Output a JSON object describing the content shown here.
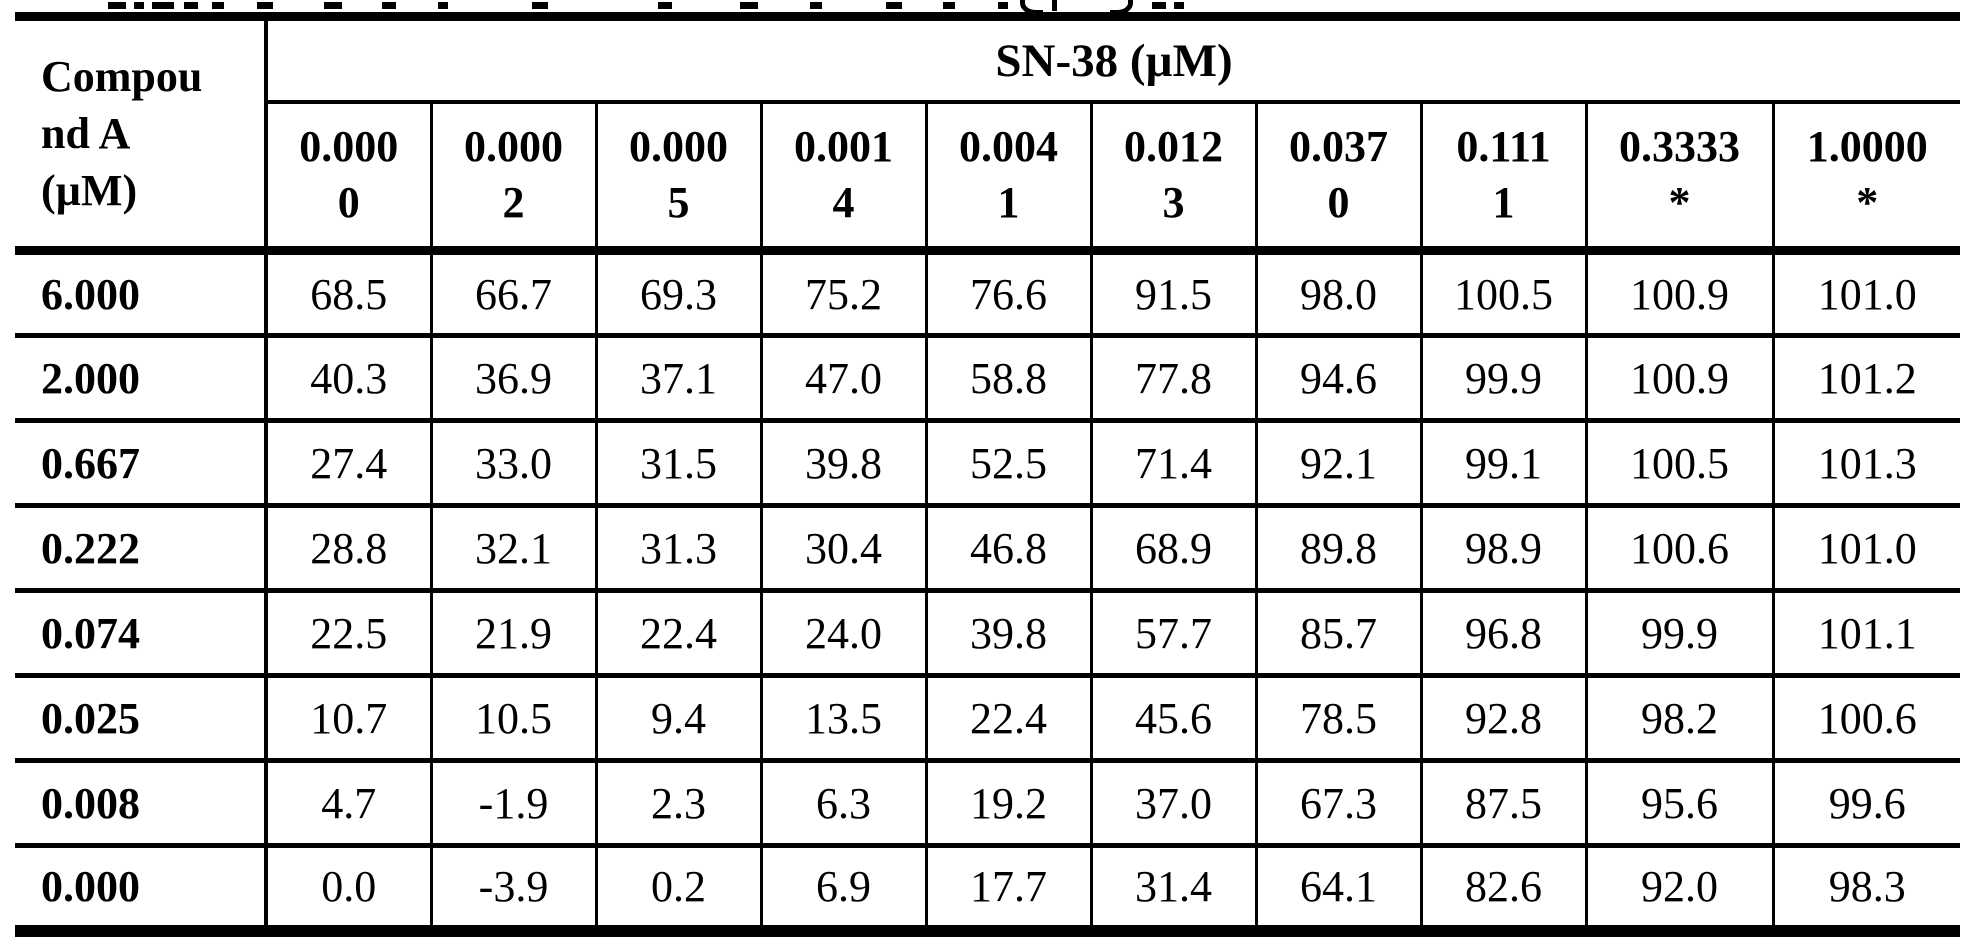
{
  "colors": {
    "text": "#000000",
    "background": "#ffffff",
    "border": "#000000"
  },
  "chart_data": {
    "type": "table",
    "corner_header": "Compound A (µM)",
    "corner_header_lines": [
      "Compou",
      "nd A",
      "(µM)"
    ],
    "span_header": "SN-38 (µM)",
    "col_headers": [
      "0.0000",
      "0.0002",
      "0.0005",
      "0.0014",
      "0.0041",
      "0.0123",
      "0.0370",
      "0.1111",
      "0.3333*",
      "1.0000*"
    ],
    "col_header_lines": [
      [
        "0.000",
        "0"
      ],
      [
        "0.000",
        "2"
      ],
      [
        "0.000",
        "5"
      ],
      [
        "0.001",
        "4"
      ],
      [
        "0.004",
        "1"
      ],
      [
        "0.012",
        "3"
      ],
      [
        "0.037",
        "0"
      ],
      [
        "0.111",
        "1"
      ],
      [
        "0.3333",
        "*"
      ],
      [
        "1.0000",
        "*"
      ]
    ],
    "row_labels": [
      "6.000",
      "2.000",
      "0.667",
      "0.222",
      "0.074",
      "0.025",
      "0.008",
      "0.000"
    ],
    "rows": [
      {
        "label": "6.000",
        "values": [
          "68.5",
          "66.7",
          "69.3",
          "75.2",
          "76.6",
          "91.5",
          "98.0",
          "100.5",
          "100.9",
          "101.0"
        ]
      },
      {
        "label": "2.000",
        "values": [
          "40.3",
          "36.9",
          "37.1",
          "47.0",
          "58.8",
          "77.8",
          "94.6",
          "99.9",
          "100.9",
          "101.2"
        ]
      },
      {
        "label": "0.667",
        "values": [
          "27.4",
          "33.0",
          "31.5",
          "39.8",
          "52.5",
          "71.4",
          "92.1",
          "99.1",
          "100.5",
          "101.3"
        ]
      },
      {
        "label": "0.222",
        "values": [
          "28.8",
          "32.1",
          "31.3",
          "30.4",
          "46.8",
          "68.9",
          "89.8",
          "98.9",
          "100.6",
          "101.0"
        ]
      },
      {
        "label": "0.074",
        "values": [
          "22.5",
          "21.9",
          "22.4",
          "24.0",
          "39.8",
          "57.7",
          "85.7",
          "96.8",
          "99.9",
          "101.1"
        ]
      },
      {
        "label": "0.025",
        "values": [
          "10.7",
          "10.5",
          "9.4",
          "13.5",
          "22.4",
          "45.6",
          "78.5",
          "92.8",
          "98.2",
          "100.6"
        ]
      },
      {
        "label": "0.008",
        "values": [
          "4.7",
          "-1.9",
          "2.3",
          "6.3",
          "19.2",
          "37.0",
          "67.3",
          "87.5",
          "95.6",
          "99.6"
        ]
      },
      {
        "label": "0.000",
        "values": [
          "0.0",
          "-3.9",
          "0.2",
          "6.9",
          "17.7",
          "31.4",
          "64.1",
          "82.6",
          "92.0",
          "98.3"
        ]
      }
    ]
  }
}
